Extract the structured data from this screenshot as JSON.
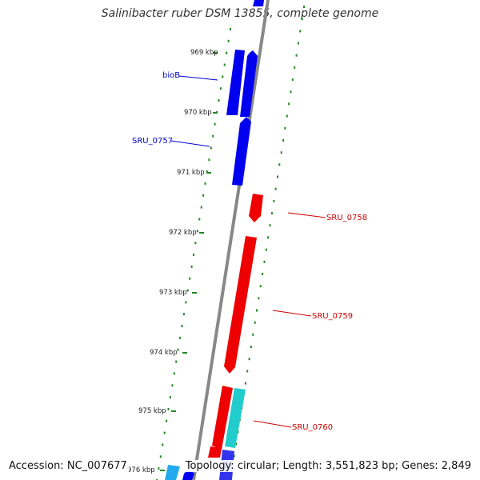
{
  "header": {
    "title": "Salinibacter ruber DSM 13855, complete genome"
  },
  "footer": {
    "accession_label": "Accession:",
    "accession": "NC_007677",
    "topology_label": "Topology:",
    "topology": "circular",
    "length_label": "Length:",
    "length": "3,551,823 bp",
    "genes_label": "Genes:",
    "genes": "2,849"
  },
  "colors": {
    "forward_gene": "#0000ee",
    "reverse_gene": "#ee0000",
    "other_gene": "#22cccc",
    "light_blue_gene": "#22aaee",
    "backbone": "#777777",
    "ticks": "#228822"
  },
  "scale": {
    "ticks": [
      "969 kbp",
      "970 kbp",
      "971 kbp",
      "972 kbp",
      "973 kbp",
      "974 kbp",
      "975 kbp",
      "976 kbp"
    ]
  },
  "genes": [
    {
      "name": "bioB",
      "strand": "forward",
      "color": "blue"
    },
    {
      "name": "SRU_0757",
      "strand": "forward",
      "color": "blue"
    },
    {
      "name": "SRU_0758",
      "strand": "reverse",
      "color": "red"
    },
    {
      "name": "SRU_0759",
      "strand": "reverse",
      "color": "red"
    },
    {
      "name": "SRU_0760",
      "strand": "reverse",
      "color": "cyan"
    }
  ]
}
